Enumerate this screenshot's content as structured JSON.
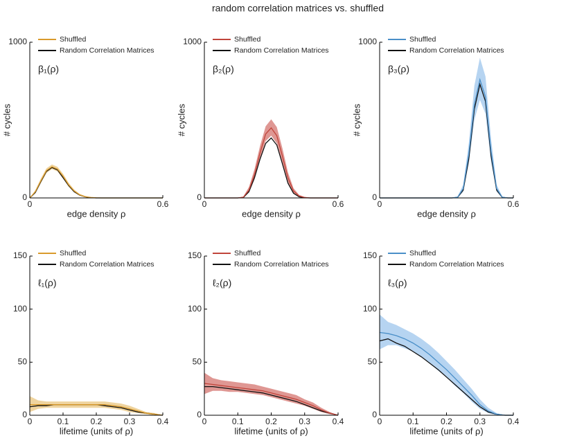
{
  "title": "random correlation matrices vs. shuffled",
  "chart_data": [
    {
      "type": "line",
      "annotation": "β₁(ρ)",
      "ylabel": "# cycles",
      "xlabel": "edge density ρ",
      "xlim": [
        0,
        0.6
      ],
      "ylim": [
        0,
        1000
      ],
      "xticks": [
        0,
        0.6
      ],
      "yticks": [
        0,
        1000
      ],
      "x": [
        0,
        0.025,
        0.05,
        0.075,
        0.1,
        0.125,
        0.15,
        0.175,
        0.2,
        0.225,
        0.25,
        0.275,
        0.3,
        0.325,
        0.35,
        0.375,
        0.4,
        0.425,
        0.45,
        0.475,
        0.5,
        0.525,
        0.55,
        0.575,
        0.6
      ],
      "series": [
        {
          "name": "Shuffled",
          "color": "#d99a2b",
          "band_color": "#eccd8e",
          "values": [
            0,
            40,
            110,
            175,
            200,
            185,
            140,
            85,
            45,
            20,
            8,
            3,
            1,
            0,
            0,
            0,
            0,
            0,
            0,
            0,
            0,
            0,
            0,
            0,
            0
          ],
          "lower": [
            0,
            30,
            95,
            160,
            185,
            170,
            125,
            72,
            36,
            14,
            4,
            1,
            0,
            0,
            0,
            0,
            0,
            0,
            0,
            0,
            0,
            0,
            0,
            0,
            0
          ],
          "upper": [
            0,
            50,
            125,
            190,
            215,
            200,
            155,
            98,
            54,
            26,
            12,
            5,
            2,
            0,
            0,
            0,
            0,
            0,
            0,
            0,
            0,
            0,
            0,
            0,
            0
          ]
        },
        {
          "name": "Random Correlation Matrices",
          "color": "#111111",
          "values": [
            0,
            35,
            105,
            170,
            195,
            180,
            130,
            80,
            40,
            18,
            7,
            2,
            0,
            0,
            0,
            0,
            0,
            0,
            0,
            0,
            0,
            0,
            0,
            0,
            0
          ]
        }
      ]
    },
    {
      "type": "line",
      "annotation": "β₂(ρ)",
      "ylabel": "# cycles",
      "xlabel": "edge density ρ",
      "xlim": [
        0,
        0.6
      ],
      "ylim": [
        0,
        1000
      ],
      "xticks": [
        0,
        0.6
      ],
      "yticks": [
        0,
        1000
      ],
      "x": [
        0,
        0.025,
        0.05,
        0.075,
        0.1,
        0.125,
        0.15,
        0.175,
        0.2,
        0.225,
        0.25,
        0.275,
        0.3,
        0.325,
        0.35,
        0.375,
        0.4,
        0.425,
        0.45,
        0.475,
        0.5,
        0.525,
        0.55,
        0.575,
        0.6
      ],
      "series": [
        {
          "name": "Shuffled",
          "color": "#c0443a",
          "band_color": "#d98580",
          "values": [
            0,
            0,
            0,
            0,
            0,
            0,
            0,
            5,
            50,
            150,
            290,
            410,
            450,
            400,
            270,
            130,
            45,
            12,
            3,
            0,
            0,
            0,
            0,
            0,
            0
          ],
          "lower": [
            0,
            0,
            0,
            0,
            0,
            0,
            0,
            2,
            35,
            120,
            250,
            365,
            400,
            350,
            225,
            100,
            30,
            6,
            1,
            0,
            0,
            0,
            0,
            0,
            0
          ],
          "upper": [
            0,
            0,
            0,
            0,
            0,
            0,
            0,
            9,
            70,
            185,
            335,
            460,
            505,
            455,
            320,
            165,
            62,
            20,
            6,
            0,
            0,
            0,
            0,
            0,
            0
          ]
        },
        {
          "name": "Random Correlation Matrices",
          "color": "#111111",
          "values": [
            0,
            0,
            0,
            0,
            0,
            0,
            0,
            3,
            40,
            130,
            250,
            350,
            385,
            340,
            220,
            95,
            30,
            7,
            1,
            0,
            0,
            0,
            0,
            0,
            0
          ]
        }
      ]
    },
    {
      "type": "line",
      "annotation": "β₃(ρ)",
      "ylabel": "# cycles",
      "xlabel": "edge density ρ",
      "xlim": [
        0,
        0.6
      ],
      "ylim": [
        0,
        1000
      ],
      "xticks": [
        0,
        0.6
      ],
      "yticks": [
        0,
        1000
      ],
      "x": [
        0,
        0.025,
        0.05,
        0.075,
        0.1,
        0.125,
        0.15,
        0.175,
        0.2,
        0.225,
        0.25,
        0.275,
        0.3,
        0.325,
        0.35,
        0.375,
        0.4,
        0.425,
        0.45,
        0.475,
        0.5,
        0.525,
        0.55,
        0.575,
        0.6
      ],
      "series": [
        {
          "name": "Shuffled",
          "color": "#4a8fc8",
          "band_color": "#a9cdee",
          "values": [
            0,
            0,
            0,
            0,
            0,
            0,
            0,
            0,
            0,
            0,
            0,
            0,
            0,
            0,
            5,
            60,
            280,
            600,
            760,
            650,
            300,
            60,
            5,
            0,
            0
          ],
          "lower": [
            0,
            0,
            0,
            0,
            0,
            0,
            0,
            0,
            0,
            0,
            0,
            0,
            0,
            0,
            2,
            40,
            220,
            500,
            630,
            540,
            230,
            40,
            2,
            0,
            0
          ],
          "upper": [
            0,
            0,
            0,
            0,
            0,
            0,
            0,
            0,
            0,
            0,
            0,
            0,
            0,
            0,
            10,
            85,
            350,
            720,
            900,
            780,
            380,
            85,
            10,
            0,
            0
          ]
        },
        {
          "name": "Random Correlation Matrices",
          "color": "#111111",
          "values": [
            0,
            0,
            0,
            0,
            0,
            0,
            0,
            0,
            0,
            0,
            0,
            0,
            0,
            0,
            4,
            50,
            250,
            570,
            730,
            620,
            270,
            50,
            4,
            0,
            0
          ]
        }
      ]
    },
    {
      "type": "line",
      "annotation": "ℓ₁(ρ)",
      "xlabel": "lifetime (units of ρ)",
      "xlim": [
        0,
        0.4
      ],
      "ylim": [
        0,
        150
      ],
      "xticks": [
        0,
        0.1,
        0.2,
        0.3,
        0.4
      ],
      "yticks": [
        0,
        50,
        100,
        150
      ],
      "x": [
        0,
        0.025,
        0.05,
        0.075,
        0.1,
        0.125,
        0.15,
        0.175,
        0.2,
        0.225,
        0.25,
        0.275,
        0.3,
        0.325,
        0.35,
        0.375,
        0.4
      ],
      "series": [
        {
          "name": "Shuffled",
          "color": "#d99a2b",
          "band_color": "#eccd8e",
          "values": [
            10,
            10,
            10,
            10,
            10,
            10,
            10,
            10,
            10,
            10,
            9,
            8,
            6,
            4,
            2,
            1,
            0
          ],
          "lower": [
            3,
            6,
            7,
            7,
            7,
            7,
            7,
            7,
            7,
            7,
            6,
            5,
            3,
            2,
            1,
            0,
            0
          ],
          "upper": [
            18,
            14,
            13,
            13,
            13,
            13,
            13,
            13,
            13,
            13,
            12,
            11,
            9,
            6,
            3,
            2,
            0
          ]
        },
        {
          "name": "Random Correlation Matrices",
          "color": "#111111",
          "values": [
            8,
            9,
            9,
            10,
            10,
            10,
            10,
            10,
            10,
            9,
            8,
            7,
            5,
            3,
            2,
            1,
            0
          ]
        }
      ]
    },
    {
      "type": "line",
      "annotation": "ℓ₂(ρ)",
      "xlabel": "lifetime (units of ρ)",
      "xlim": [
        0,
        0.4
      ],
      "ylim": [
        0,
        150
      ],
      "xticks": [
        0,
        0.1,
        0.2,
        0.3,
        0.4
      ],
      "yticks": [
        0,
        50,
        100,
        150
      ],
      "x": [
        0,
        0.025,
        0.05,
        0.075,
        0.1,
        0.125,
        0.15,
        0.175,
        0.2,
        0.225,
        0.25,
        0.275,
        0.3,
        0.325,
        0.35,
        0.375,
        0.4
      ],
      "series": [
        {
          "name": "Shuffled",
          "color": "#c0443a",
          "band_color": "#d98580",
          "values": [
            30,
            29,
            28,
            27,
            26,
            25,
            24,
            23,
            21,
            19,
            17,
            15,
            12,
            9,
            5,
            2,
            0
          ],
          "lower": [
            20,
            23,
            23,
            22,
            22,
            21,
            20,
            19,
            17,
            15,
            13,
            11,
            9,
            6,
            3,
            1,
            0
          ],
          "upper": [
            40,
            35,
            33,
            32,
            31,
            30,
            29,
            27,
            25,
            23,
            21,
            19,
            15,
            12,
            7,
            3,
            0
          ]
        },
        {
          "name": "Random Correlation Matrices",
          "color": "#111111",
          "values": [
            27,
            27,
            26,
            25,
            24,
            23,
            22,
            21,
            19,
            17,
            15,
            13,
            10,
            7,
            4,
            2,
            0
          ]
        }
      ]
    },
    {
      "type": "line",
      "annotation": "ℓ₃(ρ)",
      "xlabel": "lifetime (units of ρ)",
      "xlim": [
        0,
        0.4
      ],
      "ylim": [
        0,
        150
      ],
      "xticks": [
        0,
        0.1,
        0.2,
        0.3,
        0.4
      ],
      "yticks": [
        0,
        50,
        100,
        150
      ],
      "x": [
        0,
        0.025,
        0.05,
        0.075,
        0.1,
        0.125,
        0.15,
        0.175,
        0.2,
        0.225,
        0.25,
        0.275,
        0.3,
        0.325,
        0.35,
        0.375,
        0.4
      ],
      "series": [
        {
          "name": "Shuffled",
          "color": "#4a8fc8",
          "band_color": "#a9cdee",
          "values": [
            78,
            77,
            75,
            72,
            68,
            63,
            57,
            50,
            43,
            35,
            27,
            19,
            10,
            4,
            1,
            0,
            0
          ],
          "lower": [
            62,
            66,
            66,
            63,
            60,
            55,
            49,
            42,
            36,
            28,
            21,
            13,
            6,
            2,
            0,
            0,
            0
          ],
          "upper": [
            95,
            88,
            85,
            81,
            77,
            72,
            66,
            59,
            51,
            43,
            34,
            25,
            15,
            7,
            2,
            0,
            0
          ]
        },
        {
          "name": "Random Correlation Matrices",
          "color": "#111111",
          "values": [
            70,
            72,
            68,
            65,
            60,
            55,
            49,
            43,
            36,
            29,
            22,
            15,
            8,
            3,
            1,
            0,
            0
          ]
        }
      ]
    }
  ]
}
